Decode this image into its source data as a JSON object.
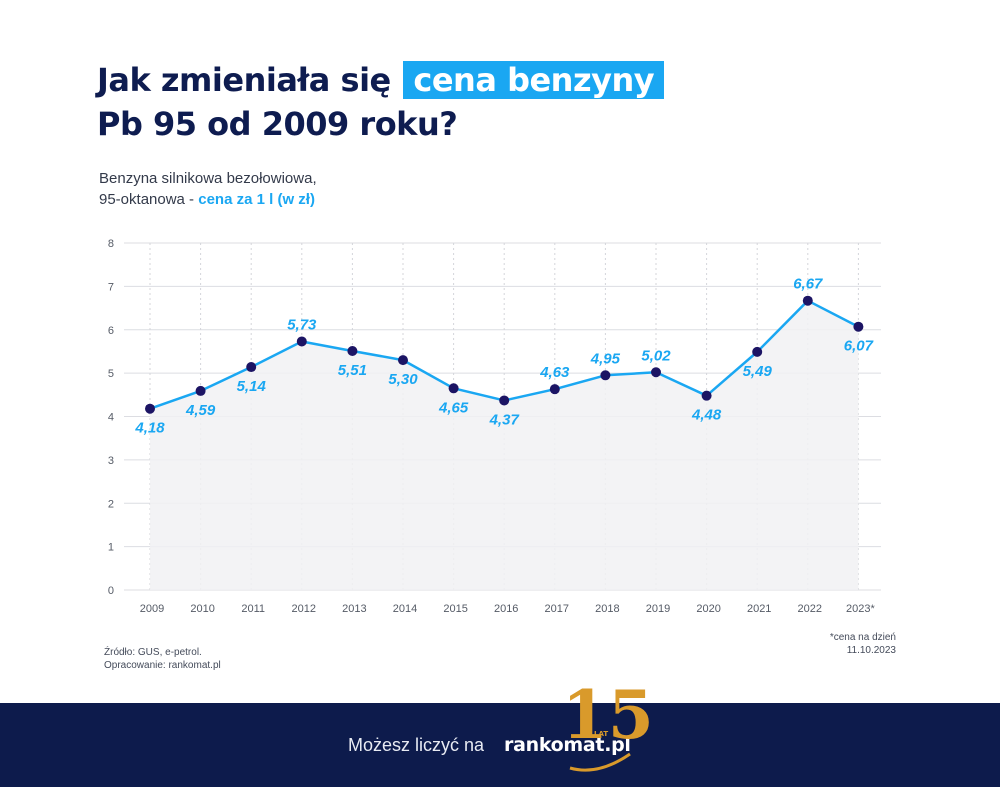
{
  "header": {
    "title_part1": "Jak zmieniała się",
    "title_highlight": "cena benzyny",
    "title_part2": "Pb 95 od 2009 roku?",
    "subtitle_line1": "Benzyna silnikowa bezołowiowa,",
    "subtitle_line2_prefix": "95-oktanowa - ",
    "subtitle_line2_accent": "cena za 1 l (w zł)"
  },
  "chart_data": {
    "type": "area",
    "categories": [
      "2009",
      "2010",
      "2011",
      "2012",
      "2013",
      "2014",
      "2015",
      "2016",
      "2017",
      "2018",
      "2019",
      "2020",
      "2021",
      "2022",
      "2023*"
    ],
    "values": [
      4.18,
      4.59,
      5.14,
      5.73,
      5.51,
      5.3,
      4.65,
      4.37,
      4.63,
      4.95,
      5.02,
      4.48,
      5.49,
      6.67,
      6.07
    ],
    "data_labels": [
      "4,18",
      "4,59",
      "5,14",
      "5,73",
      "5,51",
      "5,30",
      "4,65",
      "4,37",
      "4,63",
      "4,95",
      "5,02",
      "4,48",
      "5,49",
      "6,67",
      "6,07"
    ],
    "label_positions": [
      "below",
      "below",
      "below",
      "above",
      "below",
      "below",
      "below",
      "below",
      "above",
      "above",
      "above",
      "below",
      "below",
      "above",
      "below"
    ],
    "yticks": [
      "0",
      "1",
      "2",
      "3",
      "4",
      "5",
      "6",
      "7",
      "8"
    ],
    "ylim": [
      0,
      8
    ],
    "grid": true,
    "colors": {
      "line": "#1aa7f2",
      "marker": "#1c1464",
      "label": "#1aa7f2",
      "fill": "#f1f1f3"
    }
  },
  "source": {
    "line1": "Źródło: GUS, e-petrol.",
    "line2": "Opracowanie: rankomat.pl"
  },
  "note": {
    "line1": "*cena na dzień",
    "line2": "11.10.2023"
  },
  "footer": {
    "slogan": "Możesz liczyć na",
    "brand": "rankomat.pl",
    "badge_number": "15",
    "badge_text": "LAT",
    "colors": {
      "background": "#0d1b4c",
      "badge": "#d99a2b"
    }
  }
}
